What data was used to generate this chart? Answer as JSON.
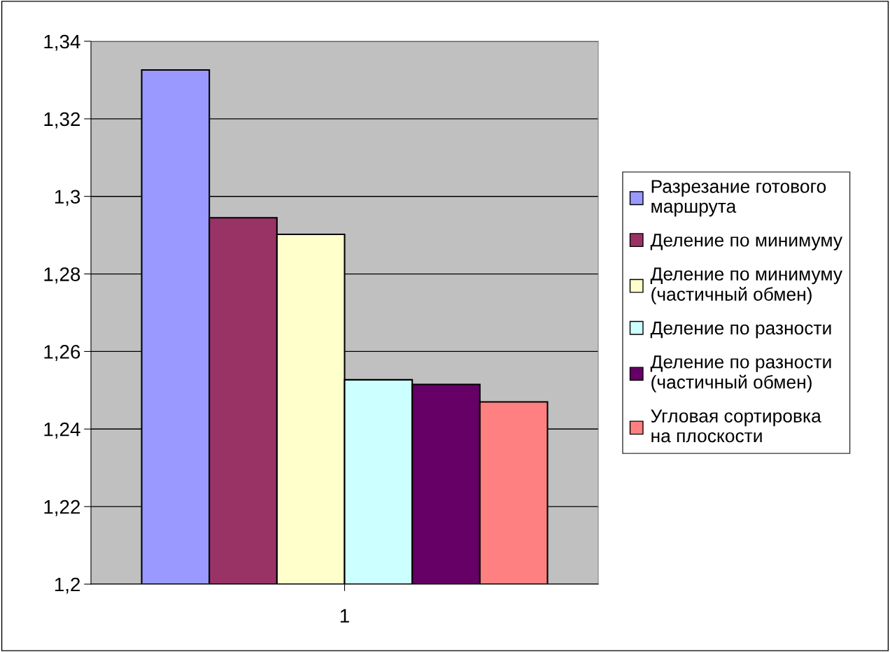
{
  "chart_data": {
    "type": "bar",
    "categories": [
      "1"
    ],
    "series": [
      {
        "name": "Разрезание готового маршрута",
        "color": "#9999ff",
        "values": [
          1.3326
        ]
      },
      {
        "name": "Деление по минимуму",
        "color": "#993366",
        "values": [
          1.2945
        ]
      },
      {
        "name": "Деление по минимуму (частичный обмен)",
        "color": "#ffffcc",
        "values": [
          1.2902
        ]
      },
      {
        "name": "Деление по разности",
        "color": "#ccffff",
        "values": [
          1.2527
        ]
      },
      {
        "name": "Деление по разности (частичный обмен)",
        "color": "#660066",
        "values": [
          1.2515
        ]
      },
      {
        "name": "Угловая сортировка на плоскости",
        "color": "#ff8080",
        "values": [
          1.247
        ]
      }
    ],
    "ylim": [
      1.2,
      1.34
    ],
    "yticks": [
      {
        "value": 1.2,
        "label": "1,2"
      },
      {
        "value": 1.22,
        "label": "1,22"
      },
      {
        "value": 1.24,
        "label": "1,24"
      },
      {
        "value": 1.26,
        "label": "1,26"
      },
      {
        "value": 1.28,
        "label": "1,28"
      },
      {
        "value": 1.3,
        "label": "1,3"
      },
      {
        "value": 1.32,
        "label": "1,32"
      },
      {
        "value": 1.34,
        "label": "1,34"
      }
    ],
    "grid": "y",
    "legend": "right"
  }
}
